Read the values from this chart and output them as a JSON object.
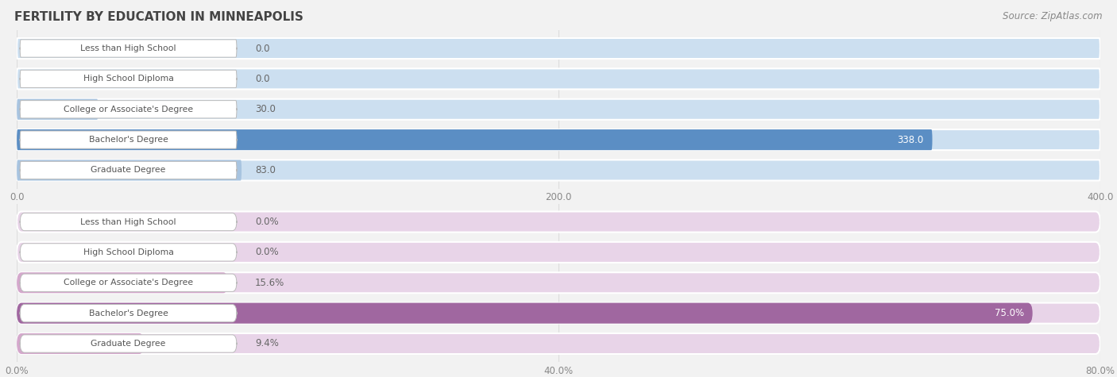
{
  "title": "FERTILITY BY EDUCATION IN MINNEAPOLIS",
  "source": "Source: ZipAtlas.com",
  "top_chart": {
    "categories": [
      "Less than High School",
      "High School Diploma",
      "College or Associate's Degree",
      "Bachelor's Degree",
      "Graduate Degree"
    ],
    "values": [
      0.0,
      0.0,
      30.0,
      338.0,
      83.0
    ],
    "value_labels": [
      "0.0",
      "0.0",
      "30.0",
      "338.0",
      "83.0"
    ],
    "xlim": [
      0,
      400
    ],
    "xticks": [
      0.0,
      200.0,
      400.0
    ],
    "xtick_labels": [
      "0.0",
      "200.0",
      "400.0"
    ],
    "bar_color_bg": "#ccdff0",
    "bar_color_normal": "#a8c4e0",
    "bar_color_highlight": "#5b8ec4",
    "highlight_index": 3,
    "row_sep_color": "#e0e0e0"
  },
  "bottom_chart": {
    "categories": [
      "Less than High School",
      "High School Diploma",
      "College or Associate's Degree",
      "Bachelor's Degree",
      "Graduate Degree"
    ],
    "values": [
      0.0,
      0.0,
      15.6,
      75.0,
      9.4
    ],
    "value_labels": [
      "0.0%",
      "0.0%",
      "15.6%",
      "75.0%",
      "9.4%"
    ],
    "xlim": [
      0,
      80
    ],
    "xticks": [
      0.0,
      40.0,
      80.0
    ],
    "xtick_labels": [
      "0.0%",
      "40.0%",
      "80.0%"
    ],
    "bar_color_bg": "#e8d4e8",
    "bar_color_normal": "#d4a8cc",
    "bar_color_highlight": "#a067a0",
    "highlight_index": 3,
    "row_sep_color": "#e0d8e8"
  },
  "label_box_color": "white",
  "label_box_edge_color": "#bbbbbb",
  "label_text_color": "#555555",
  "title_color": "#444444",
  "source_color": "#888888",
  "value_text_color_normal": "#666666",
  "value_text_color_highlight": "white",
  "grid_color": "#dddddd",
  "tick_color": "#888888",
  "background_color": "#f2f2f2"
}
